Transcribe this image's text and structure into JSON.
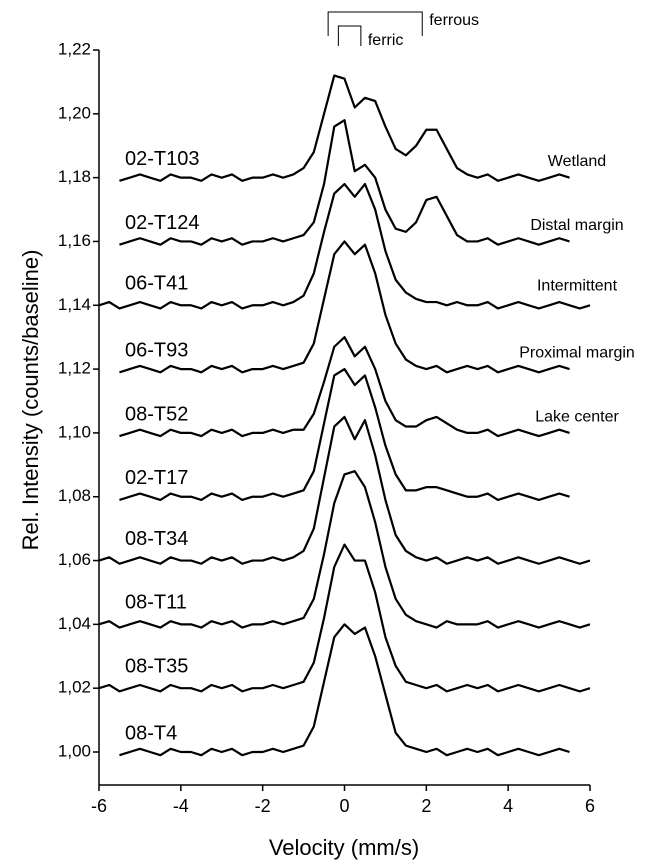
{
  "chart_data": {
    "type": "line",
    "xlabel": "Velocity (mm/s)",
    "ylabel": "Rel. Intensity (counts/baseline)",
    "xlim": [
      -6,
      6
    ],
    "xticks": [
      -6,
      -4,
      -2,
      0,
      2,
      4,
      6
    ],
    "ylim": [
      0.99,
      1.22
    ],
    "yticks": [
      {
        "value": 1.0,
        "label": "1,00"
      },
      {
        "value": 1.02,
        "label": "1,02"
      },
      {
        "value": 1.04,
        "label": "1,04"
      },
      {
        "value": 1.06,
        "label": "1,06"
      },
      {
        "value": 1.08,
        "label": "1,08"
      },
      {
        "value": 1.1,
        "label": "1,10"
      },
      {
        "value": 1.12,
        "label": "1,12"
      },
      {
        "value": 1.14,
        "label": "1,14"
      },
      {
        "value": 1.16,
        "label": "1,16"
      },
      {
        "value": 1.18,
        "label": "1,18"
      },
      {
        "value": 1.2,
        "label": "1,20"
      },
      {
        "value": 1.22,
        "label": "1,22"
      }
    ],
    "annotations": [
      {
        "text": "ferric",
        "x": [
          -0.15,
          0.4
        ]
      },
      {
        "text": "ferrous",
        "x": [
          -0.4,
          1.9
        ]
      }
    ],
    "x": [
      -6,
      -5.75,
      -5.5,
      -5.25,
      -5,
      -4.75,
      -4.5,
      -4.25,
      -4,
      -3.75,
      -3.5,
      -3.25,
      -3,
      -2.75,
      -2.5,
      -2.25,
      -2,
      -1.75,
      -1.5,
      -1.25,
      -1,
      -0.75,
      -0.5,
      -0.25,
      0,
      0.25,
      0.5,
      0.75,
      1,
      1.25,
      1.5,
      1.75,
      2,
      2.25,
      2.5,
      2.75,
      3,
      3.25,
      3.5,
      3.75,
      4,
      4.25,
      4.5,
      4.75,
      5,
      5.25,
      5.5,
      5.75,
      6
    ],
    "series": [
      {
        "name": "02-T103",
        "site": "Wetland",
        "color": "#000000",
        "values": [
          null,
          null,
          1.179,
          1.18,
          1.181,
          1.18,
          1.179,
          1.181,
          1.18,
          1.18,
          1.179,
          1.181,
          1.18,
          1.181,
          1.179,
          1.18,
          1.18,
          1.181,
          1.18,
          1.181,
          1.183,
          1.188,
          1.2,
          1.212,
          1.211,
          1.202,
          1.205,
          1.204,
          1.196,
          1.189,
          1.187,
          1.19,
          1.195,
          1.195,
          1.189,
          1.183,
          1.181,
          1.18,
          1.181,
          1.179,
          1.18,
          1.181,
          1.18,
          1.179,
          1.18,
          1.181,
          1.18,
          null,
          null
        ]
      },
      {
        "name": "02-T124",
        "site": "Distal margin",
        "color": "#000000",
        "values": [
          null,
          null,
          1.159,
          1.16,
          1.161,
          1.16,
          1.159,
          1.161,
          1.16,
          1.16,
          1.159,
          1.161,
          1.16,
          1.161,
          1.159,
          1.16,
          1.16,
          1.161,
          1.16,
          1.161,
          1.162,
          1.166,
          1.178,
          1.196,
          1.198,
          1.182,
          1.184,
          1.18,
          1.17,
          1.164,
          1.163,
          1.166,
          1.173,
          1.174,
          1.168,
          1.162,
          1.16,
          1.16,
          1.161,
          1.159,
          1.16,
          1.161,
          1.16,
          1.159,
          1.16,
          1.161,
          1.16,
          null,
          null
        ]
      },
      {
        "name": "06-T41",
        "site": "Intermittent",
        "color": "#000000",
        "values": [
          1.14,
          1.141,
          1.139,
          1.14,
          1.141,
          1.14,
          1.139,
          1.141,
          1.14,
          1.14,
          1.139,
          1.141,
          1.14,
          1.141,
          1.139,
          1.14,
          1.14,
          1.141,
          1.14,
          1.141,
          1.143,
          1.15,
          1.163,
          1.175,
          1.178,
          1.174,
          1.178,
          1.17,
          1.157,
          1.148,
          1.144,
          1.142,
          1.141,
          1.141,
          1.14,
          1.141,
          1.14,
          1.14,
          1.141,
          1.139,
          1.14,
          1.141,
          1.14,
          1.139,
          1.14,
          1.141,
          1.14,
          1.139,
          1.14
        ]
      },
      {
        "name": "06-T93",
        "site": "Proximal margin",
        "color": "#000000",
        "values": [
          null,
          null,
          1.119,
          1.12,
          1.121,
          1.12,
          1.119,
          1.121,
          1.12,
          1.12,
          1.119,
          1.121,
          1.12,
          1.121,
          1.119,
          1.12,
          1.12,
          1.121,
          1.12,
          1.121,
          1.122,
          1.128,
          1.142,
          1.156,
          1.16,
          1.156,
          1.159,
          1.15,
          1.137,
          1.128,
          1.123,
          1.121,
          1.12,
          1.121,
          1.119,
          1.12,
          1.121,
          1.12,
          1.121,
          1.119,
          1.12,
          1.121,
          1.12,
          1.119,
          1.12,
          1.121,
          1.12,
          null,
          null
        ]
      },
      {
        "name": "08-T52",
        "site": "Lake center",
        "color": "#000000",
        "values": [
          null,
          null,
          1.099,
          1.1,
          1.101,
          1.1,
          1.099,
          1.101,
          1.1,
          1.1,
          1.099,
          1.101,
          1.1,
          1.101,
          1.099,
          1.1,
          1.1,
          1.101,
          1.1,
          1.101,
          1.101,
          1.106,
          1.116,
          1.127,
          1.13,
          1.124,
          1.127,
          1.12,
          1.11,
          1.104,
          1.102,
          1.102,
          1.104,
          1.105,
          1.103,
          1.101,
          1.1,
          1.1,
          1.101,
          1.099,
          1.1,
          1.101,
          1.1,
          1.099,
          1.1,
          1.101,
          1.1,
          null,
          null
        ]
      },
      {
        "name": "02-T17",
        "color": "#000000",
        "values": [
          null,
          null,
          1.079,
          1.08,
          1.081,
          1.08,
          1.079,
          1.081,
          1.08,
          1.08,
          1.079,
          1.081,
          1.08,
          1.081,
          1.079,
          1.08,
          1.08,
          1.081,
          1.08,
          1.081,
          1.082,
          1.088,
          1.103,
          1.118,
          1.12,
          1.115,
          1.118,
          1.108,
          1.096,
          1.087,
          1.082,
          1.082,
          1.083,
          1.083,
          1.082,
          1.081,
          1.08,
          1.08,
          1.081,
          1.079,
          1.08,
          1.081,
          1.08,
          1.079,
          1.08,
          1.081,
          1.08,
          null,
          null
        ]
      },
      {
        "name": "08-T34",
        "color": "#000000",
        "values": [
          1.06,
          1.061,
          1.059,
          1.06,
          1.061,
          1.06,
          1.059,
          1.061,
          1.06,
          1.06,
          1.059,
          1.061,
          1.06,
          1.061,
          1.059,
          1.06,
          1.06,
          1.061,
          1.06,
          1.061,
          1.063,
          1.07,
          1.086,
          1.102,
          1.105,
          1.098,
          1.104,
          1.093,
          1.079,
          1.068,
          1.063,
          1.061,
          1.06,
          1.061,
          1.059,
          1.06,
          1.061,
          1.06,
          1.061,
          1.059,
          1.06,
          1.061,
          1.06,
          1.059,
          1.06,
          1.061,
          1.06,
          1.059,
          1.06
        ]
      },
      {
        "name": "08-T11",
        "color": "#000000",
        "values": [
          1.04,
          1.041,
          1.039,
          1.04,
          1.041,
          1.04,
          1.039,
          1.041,
          1.04,
          1.04,
          1.039,
          1.041,
          1.04,
          1.041,
          1.039,
          1.04,
          1.04,
          1.041,
          1.04,
          1.041,
          1.042,
          1.048,
          1.062,
          1.078,
          1.087,
          1.088,
          1.083,
          1.072,
          1.058,
          1.048,
          1.043,
          1.041,
          1.04,
          1.039,
          1.041,
          1.04,
          1.04,
          1.04,
          1.041,
          1.039,
          1.04,
          1.041,
          1.04,
          1.039,
          1.04,
          1.041,
          1.04,
          1.039,
          1.04
        ]
      },
      {
        "name": "08-T35",
        "color": "#000000",
        "values": [
          1.02,
          1.021,
          1.019,
          1.02,
          1.021,
          1.02,
          1.019,
          1.021,
          1.02,
          1.02,
          1.019,
          1.021,
          1.02,
          1.021,
          1.019,
          1.02,
          1.02,
          1.021,
          1.02,
          1.021,
          1.022,
          1.028,
          1.042,
          1.058,
          1.065,
          1.06,
          1.06,
          1.05,
          1.036,
          1.027,
          1.022,
          1.021,
          1.02,
          1.021,
          1.019,
          1.02,
          1.021,
          1.02,
          1.021,
          1.019,
          1.02,
          1.021,
          1.02,
          1.019,
          1.02,
          1.021,
          1.02,
          1.019,
          1.02
        ]
      },
      {
        "name": "08-T4",
        "color": "#000000",
        "values": [
          null,
          null,
          0.999,
          1.0,
          1.001,
          1.0,
          0.999,
          1.001,
          1.0,
          1.0,
          0.999,
          1.001,
          1.0,
          1.001,
          0.999,
          1.0,
          1.0,
          1.001,
          1.0,
          1.001,
          1.002,
          1.008,
          1.022,
          1.036,
          1.04,
          1.037,
          1.039,
          1.03,
          1.018,
          1.006,
          1.002,
          1.001,
          1.0,
          1.001,
          0.999,
          1.0,
          1.001,
          1.0,
          1.001,
          0.999,
          1.0,
          1.001,
          1.0,
          0.999,
          1.0,
          1.001,
          1.0,
          null,
          null
        ]
      }
    ]
  }
}
